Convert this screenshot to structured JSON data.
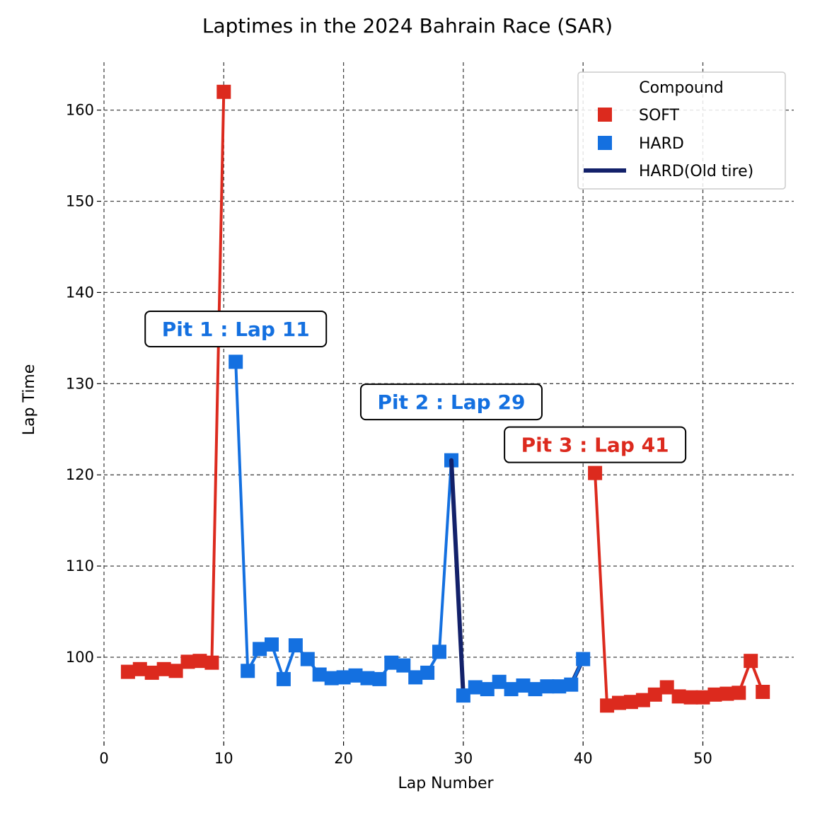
{
  "chart_data": {
    "type": "line",
    "title": "Laptimes in the 2024 Bahrain Race (SAR)",
    "xlabel": "Lap Number",
    "ylabel": "Lap Time",
    "xlim": [
      0,
      57.7
    ],
    "ylim": [
      91,
      165.5
    ],
    "xticks": [
      0,
      10,
      20,
      30,
      40,
      50
    ],
    "yticks": [
      100,
      110,
      120,
      130,
      140,
      150,
      160
    ],
    "grid": true,
    "legend": {
      "title": "Compound",
      "placement": "top-right",
      "entries": [
        {
          "label": "SOFT",
          "color": "#dc2a1e",
          "marker": "square"
        },
        {
          "label": "HARD",
          "color": "#1470e0",
          "marker": "square"
        },
        {
          "label": "HARD(Old tire)",
          "color": "#13216a",
          "marker": "line"
        }
      ]
    },
    "series": [
      {
        "name": "SOFT",
        "color": "#dc2a1e",
        "x": [
          2,
          3,
          4,
          5,
          6,
          7,
          8,
          9,
          10
        ],
        "y": [
          98.4,
          98.7,
          98.3,
          98.7,
          98.5,
          99.5,
          99.6,
          99.4,
          162.0
        ]
      },
      {
        "name": "HARD",
        "color": "#1470e0",
        "x": [
          11,
          12,
          13,
          14,
          15,
          16,
          17,
          18,
          19,
          20,
          21,
          22,
          23,
          24,
          25,
          26,
          27,
          28,
          29
        ],
        "y": [
          132.4,
          98.5,
          100.9,
          101.4,
          97.6,
          101.3,
          99.8,
          98.1,
          97.7,
          97.8,
          98.0,
          97.7,
          97.6,
          99.4,
          99.1,
          97.8,
          98.3,
          100.6,
          121.6
        ]
      },
      {
        "name": "HARD(Old tire)",
        "color": "#13216a",
        "x": [
          29,
          30,
          31,
          32,
          33,
          34,
          35,
          36,
          37,
          38,
          39,
          40
        ],
        "y": [
          121.6,
          95.8,
          96.7,
          96.5,
          97.3,
          96.5,
          96.9,
          96.5,
          96.8,
          96.8,
          97.0,
          99.8
        ]
      },
      {
        "name": "HARD",
        "color": "#1470e0",
        "x": [
          30,
          31,
          32,
          33,
          34,
          35,
          36,
          37,
          38,
          39,
          40
        ],
        "y": [
          95.8,
          96.7,
          96.5,
          97.3,
          96.5,
          96.9,
          96.5,
          96.8,
          96.8,
          97.0,
          99.8
        ]
      },
      {
        "name": "SOFT",
        "color": "#dc2a1e",
        "x": [
          41,
          42,
          43,
          44,
          45,
          46,
          47,
          48,
          49,
          50,
          51,
          52,
          53,
          54,
          55
        ],
        "y": [
          120.2,
          94.7,
          95.0,
          95.1,
          95.3,
          95.9,
          96.7,
          95.7,
          95.6,
          95.6,
          95.9,
          96.0,
          96.1,
          99.6,
          96.2
        ]
      }
    ],
    "annotations": [
      {
        "text": "Pit 1 : Lap 11",
        "x": 11,
        "y": 136,
        "color": "#1470e0"
      },
      {
        "text": "Pit 2 : Lap 29",
        "x": 29,
        "y": 128,
        "color": "#1470e0"
      },
      {
        "text": "Pit 3 : Lap 41",
        "x": 41,
        "y": 123.3,
        "color": "#dc2a1e"
      }
    ]
  }
}
